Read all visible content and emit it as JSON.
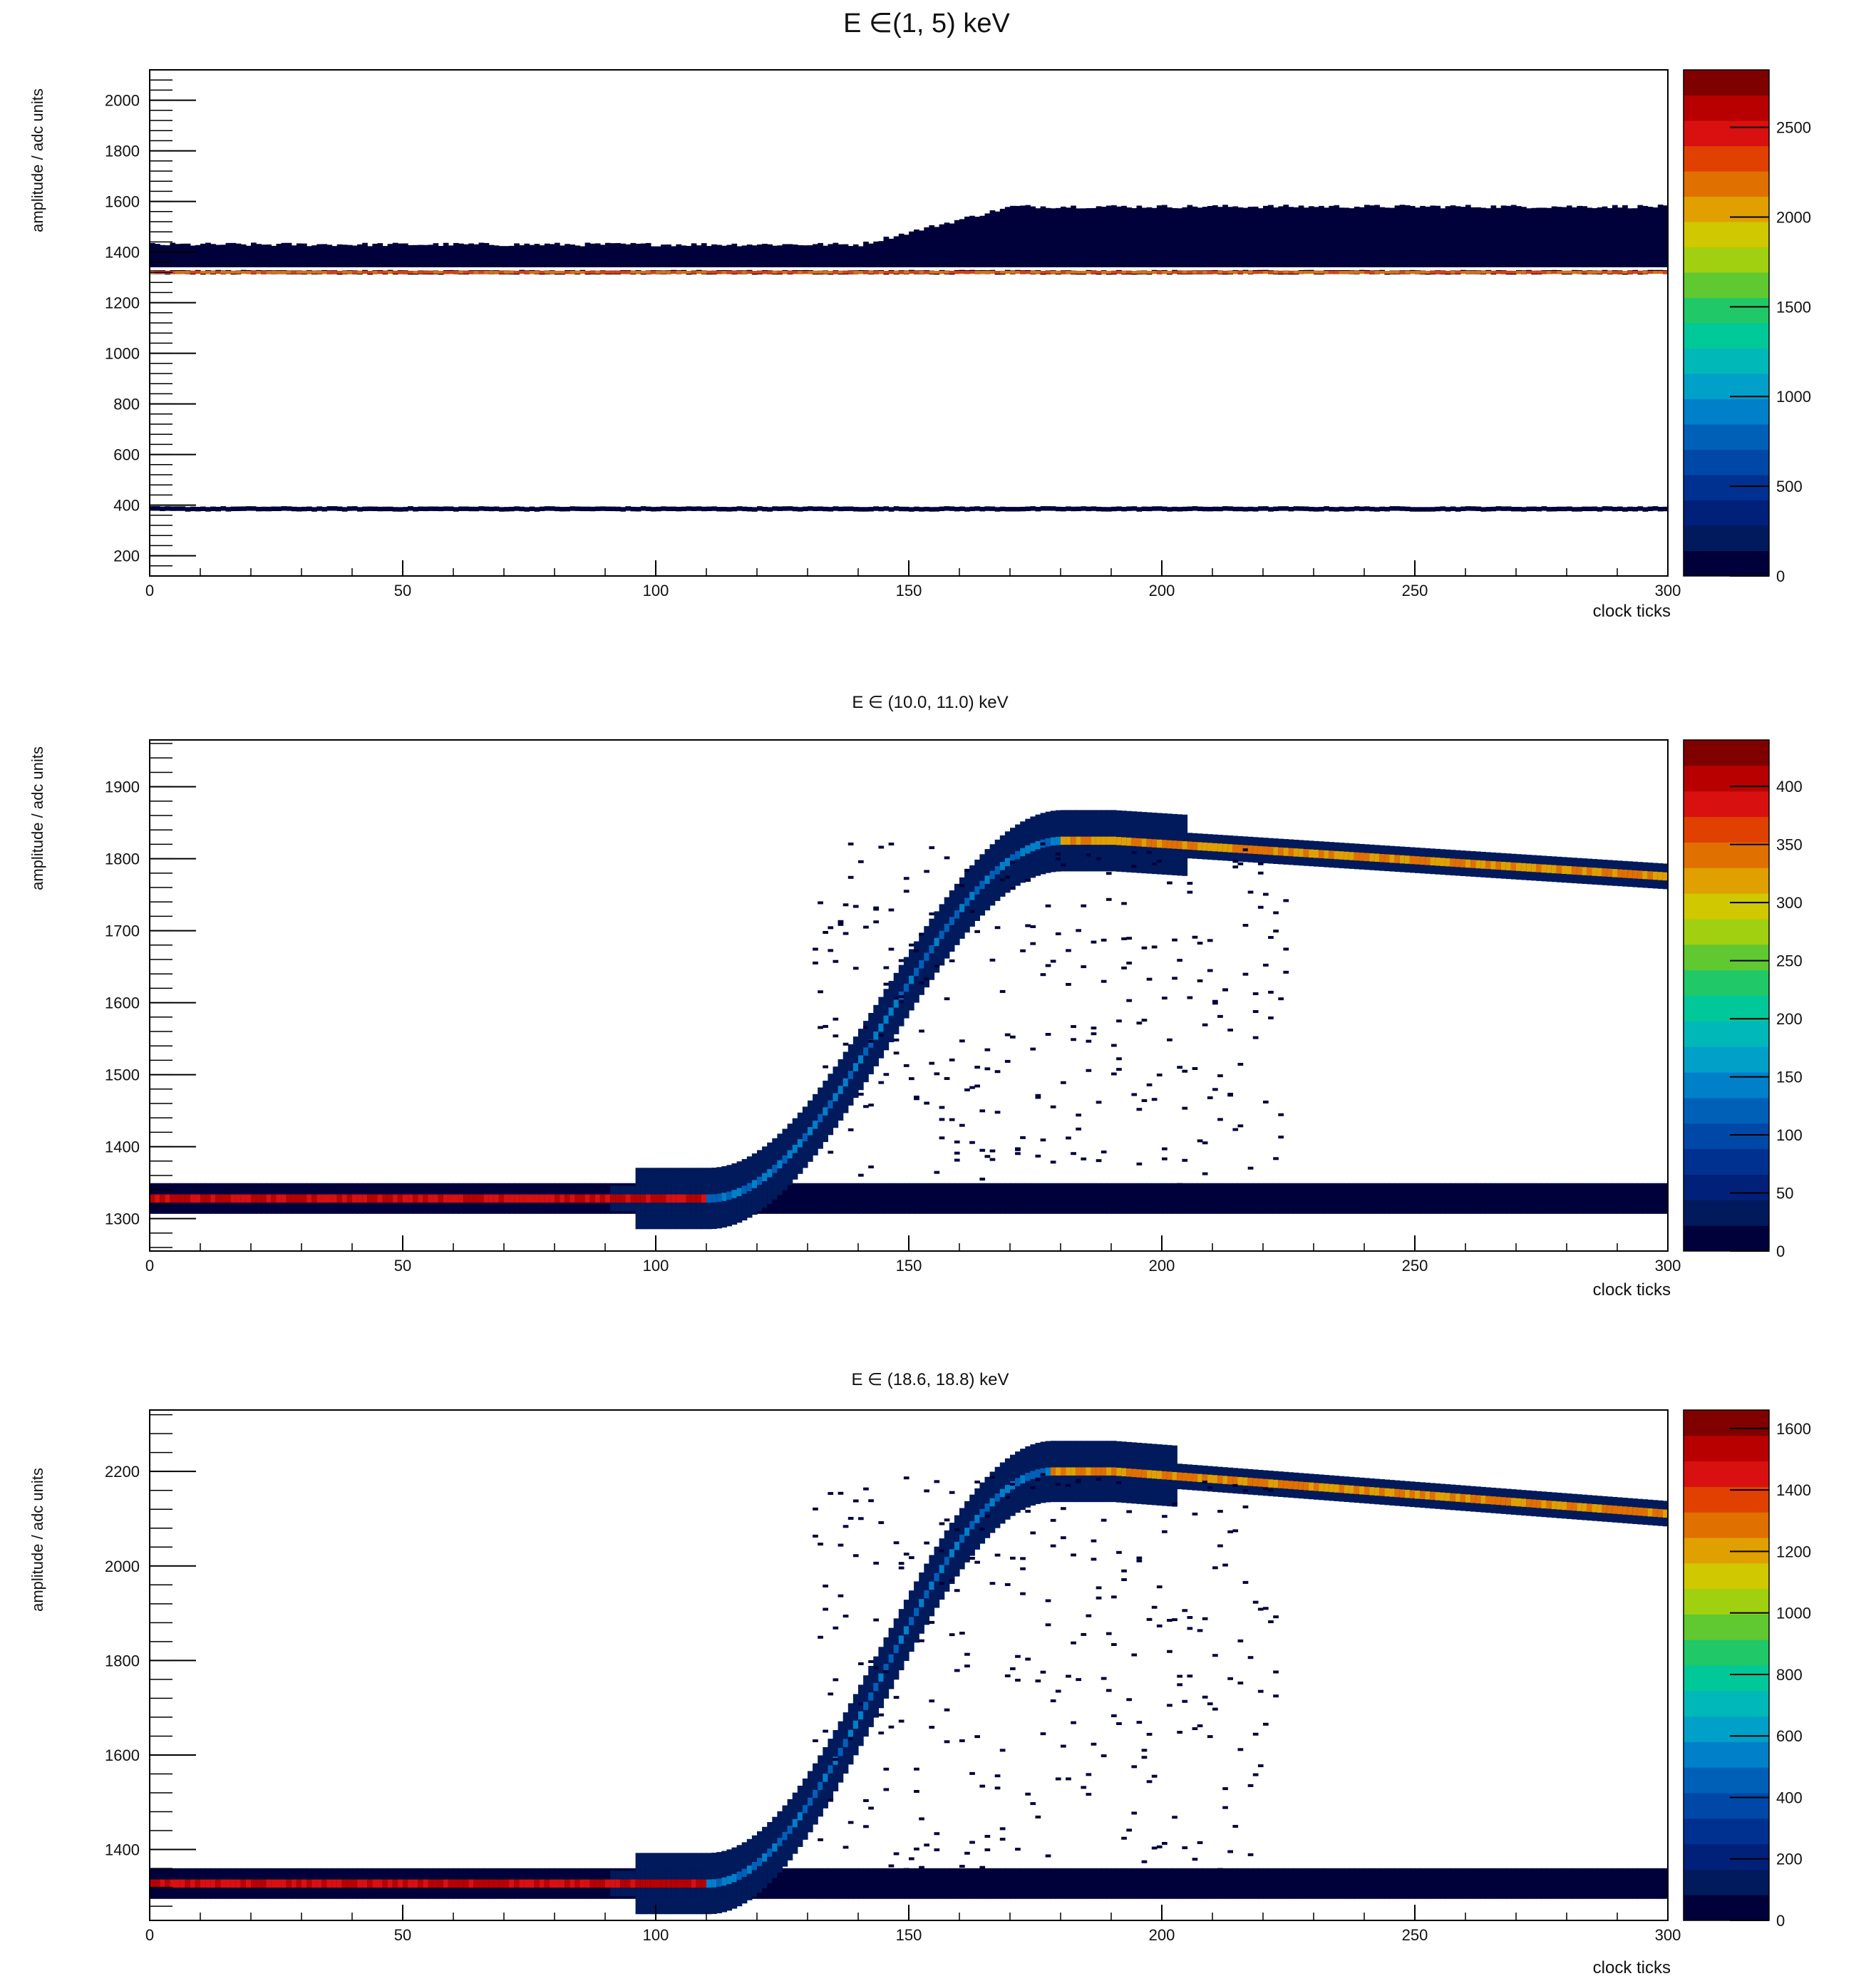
{
  "chart_data": [
    {
      "type": "heatmap",
      "title": "E ∈(1, 5) keV",
      "xlabel": "clock ticks",
      "ylabel": "amplitude / adc units",
      "xlim": [
        0,
        300
      ],
      "ylim": [
        120,
        2120
      ],
      "x_ticks": [
        "0",
        "50",
        "100",
        "150",
        "200",
        "250",
        "300"
      ],
      "y_ticks": [
        "200",
        "400",
        "600",
        "800",
        "1000",
        "1200",
        "1400",
        "1600",
        "1800",
        "2000"
      ],
      "colorbar": {
        "range": [
          0,
          2820
        ],
        "ticks": [
          "0",
          "500",
          "1000",
          "1500",
          "2000",
          "2500"
        ]
      },
      "bands": [
        {
          "kind": "baseline",
          "x_start": 0,
          "x_end": 300,
          "y": 1320,
          "width": 15,
          "peak": 2500
        },
        {
          "kind": "band",
          "x_start": 0,
          "x_end": 300,
          "y_lo": 1340,
          "y_hi_start": 1430,
          "y_hi_step_x": 140,
          "y_hi_end": 1580,
          "level": 150
        },
        {
          "kind": "baseline",
          "x_start": 0,
          "x_end": 300,
          "y": 385,
          "width": 18,
          "peak": 200
        }
      ],
      "y_grid": false
    },
    {
      "type": "heatmap",
      "title": "E ∈ (10.0, 11.0) keV",
      "xlabel": "clock ticks",
      "ylabel": "amplitude / adc units",
      "xlim": [
        0,
        300
      ],
      "ylim": [
        1255,
        1965
      ],
      "x_ticks": [
        "0",
        "50",
        "100",
        "150",
        "200",
        "250",
        "300"
      ],
      "y_ticks": [
        "1300",
        "1400",
        "1500",
        "1600",
        "1700",
        "1800",
        "1900"
      ],
      "colorbar": {
        "range": [
          0,
          440
        ],
        "ticks": [
          "0",
          "50",
          "100",
          "150",
          "200",
          "250",
          "300",
          "350",
          "400"
        ]
      },
      "pulse": {
        "baseline": 1328,
        "rise_start": 110,
        "rise_end": 180,
        "peak": 1825,
        "peak_x": 190,
        "end_value": 1775,
        "end_x": 300,
        "peak_count": 400
      },
      "y_grid": false
    },
    {
      "type": "heatmap",
      "title": "E ∈ (18.6, 18.8) keV",
      "xlabel": "clock ticks",
      "ylabel": "amplitude / adc units",
      "xlim": [
        0,
        300
      ],
      "ylim": [
        1250,
        2330
      ],
      "x_ticks": [
        "0",
        "50",
        "100",
        "150",
        "200",
        "250",
        "300"
      ],
      "y_ticks": [
        "1400",
        "1600",
        "1800",
        "2000",
        "2200"
      ],
      "colorbar": {
        "range": [
          0,
          1660
        ],
        "ticks": [
          "0",
          "200",
          "400",
          "600",
          "800",
          "1000",
          "1200",
          "1400",
          "1600"
        ]
      },
      "pulse": {
        "baseline": 1328,
        "rise_start": 110,
        "rise_end": 178,
        "peak": 2200,
        "peak_x": 190,
        "end_value": 2110,
        "end_x": 300,
        "peak_count": 1550
      },
      "y_grid": false
    }
  ]
}
